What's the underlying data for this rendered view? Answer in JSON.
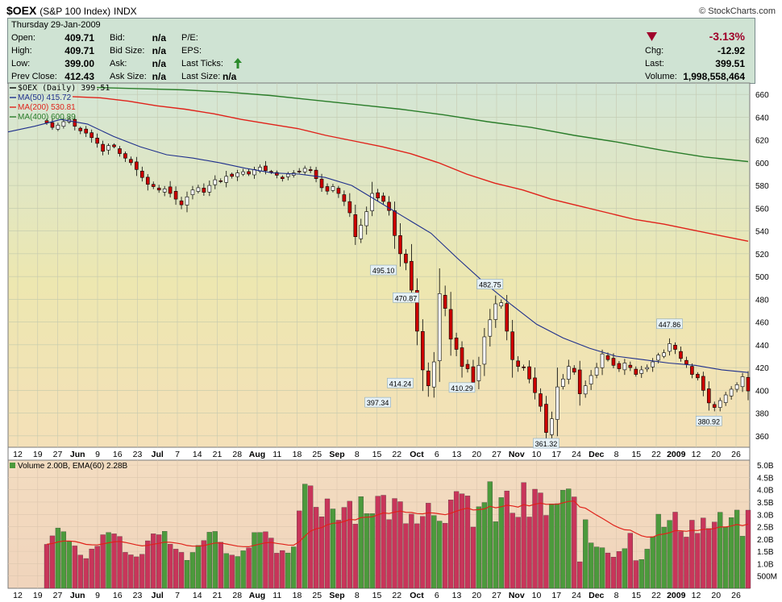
{
  "header": {
    "symbol": "$OEX",
    "name": "(S&P 100 Index)",
    "exchange": "INDX",
    "copyright": "© StockCharts.com"
  },
  "quote": {
    "date": "Thursday  29-Jan-2009",
    "open_label": "Open:",
    "open": "409.71",
    "high_label": "High:",
    "high": "409.71",
    "low_label": "Low:",
    "low": "399.00",
    "prevclose_label": "Prev Close:",
    "prevclose": "412.43",
    "bid_label": "Bid:",
    "bid": "n/a",
    "bidsize_label": "Bid Size:",
    "bidsize": "n/a",
    "ask_label": "Ask:",
    "ask": "n/a",
    "asksize_label": "Ask Size:",
    "asksize": "n/a",
    "pe_label": "P/E:",
    "eps_label": "EPS:",
    "lastticks_label": "Last Ticks:",
    "lastsize_label": "Last Size:",
    "lastsize": "n/a",
    "pct_change": "-3.13%",
    "chg_label": "Chg:",
    "chg": "-12.92",
    "last_label": "Last:",
    "last": "399.51",
    "volume_label": "Volume:",
    "volume": "1,998,558,464"
  },
  "colors": {
    "up": "#3f8c3f",
    "down": "#cc0000",
    "ma50": "#1e2f8c",
    "ma200": "#e0221a",
    "ma400": "#2a7d2a",
    "vol_up": "#4c9a3c",
    "vol_down": "#c8355a",
    "ema": "#e0221a"
  },
  "chart_data": [
    {
      "type": "candlestick",
      "legend": [
        "$OEX (Daily) 399.51",
        "MA(50) 415.72",
        "MA(200) 530.81",
        "MA(400) 600.89"
      ],
      "ylim": [
        350,
        670
      ],
      "yticks": [
        360,
        380,
        400,
        420,
        440,
        460,
        480,
        500,
        520,
        540,
        560,
        580,
        600,
        620,
        640,
        660
      ],
      "xticks": [
        "12",
        "19",
        "27",
        "Jun",
        "9",
        "16",
        "23",
        "Jul",
        "7",
        "14",
        "21",
        "28",
        "Aug",
        "11",
        "18",
        "25",
        "Sep",
        "8",
        "15",
        "22",
        "Oct",
        "6",
        "13",
        "20",
        "27",
        "Nov",
        "10",
        "17",
        "24",
        "Dec",
        "8",
        "15",
        "22",
        "2009",
        "12",
        "20",
        "26"
      ],
      "month_ticks": [
        "Jun",
        "Jul",
        "Aug",
        "Sep",
        "Oct",
        "Nov",
        "Dec",
        "2009"
      ],
      "annotations": [
        "495.10",
        "470.87",
        "482.75",
        "447.86",
        "397.34",
        "414.24",
        "410.29",
        "361.32",
        "380.92"
      ],
      "ma_keypoints": {
        "ma50": [
          627,
          632,
          638,
          634,
          623,
          614,
          607,
          604,
          600,
          595,
          591,
          590,
          587,
          580,
          566,
          552,
          538,
          516,
          495,
          476,
          458,
          446,
          437,
          430,
          427,
          424,
          422,
          418,
          415.7
        ],
        "ma200": [
          658,
          657,
          654,
          650,
          647,
          643,
          638,
          634,
          630,
          624,
          619,
          614,
          608,
          600,
          590,
          582,
          576,
          568,
          562,
          556,
          550,
          546,
          541,
          536,
          531
        ],
        "ma400": [
          666,
          665,
          664,
          662,
          659,
          655,
          651,
          647,
          642,
          636,
          631,
          624,
          618,
          611,
          605,
          601
        ]
      },
      "closes": [
        635,
        631,
        633,
        636,
        638,
        632,
        628,
        626,
        622,
        617,
        610,
        615,
        614,
        608,
        604,
        600,
        594,
        587,
        581,
        579,
        576,
        577,
        573,
        568,
        563,
        570,
        576,
        578,
        574,
        580,
        585,
        584,
        588,
        588,
        591,
        592,
        590,
        594,
        596,
        593,
        592,
        589,
        586,
        590,
        591,
        592,
        595,
        593,
        586,
        578,
        575,
        579,
        573,
        566,
        556,
        535,
        545,
        557,
        573,
        569,
        566,
        558,
        536,
        520,
        512,
        488,
        452,
        418,
        404,
        425,
        485,
        472,
        445,
        436,
        421,
        419,
        407,
        422,
        447,
        462,
        476,
        477,
        452,
        427,
        421,
        420,
        410,
        398,
        386,
        363,
        375,
        403,
        410,
        421,
        416,
        397,
        404,
        413,
        420,
        432,
        427,
        422,
        419,
        424,
        420,
        414,
        418,
        420,
        425,
        431,
        433,
        441,
        436,
        428,
        423,
        414,
        411,
        400,
        389,
        385,
        391,
        396,
        401,
        405,
        412,
        399.5
      ],
      "volume": {
        "legend": "Volume 2.00B, EMA(60) 2.28B",
        "yticks": [
          "500M",
          "1.0B",
          "1.5B",
          "2.0B",
          "2.5B",
          "3.0B",
          "3.5B",
          "4.0B",
          "4.5B",
          "5.0B"
        ],
        "ylim": [
          0,
          5.2
        ]
      }
    }
  ]
}
